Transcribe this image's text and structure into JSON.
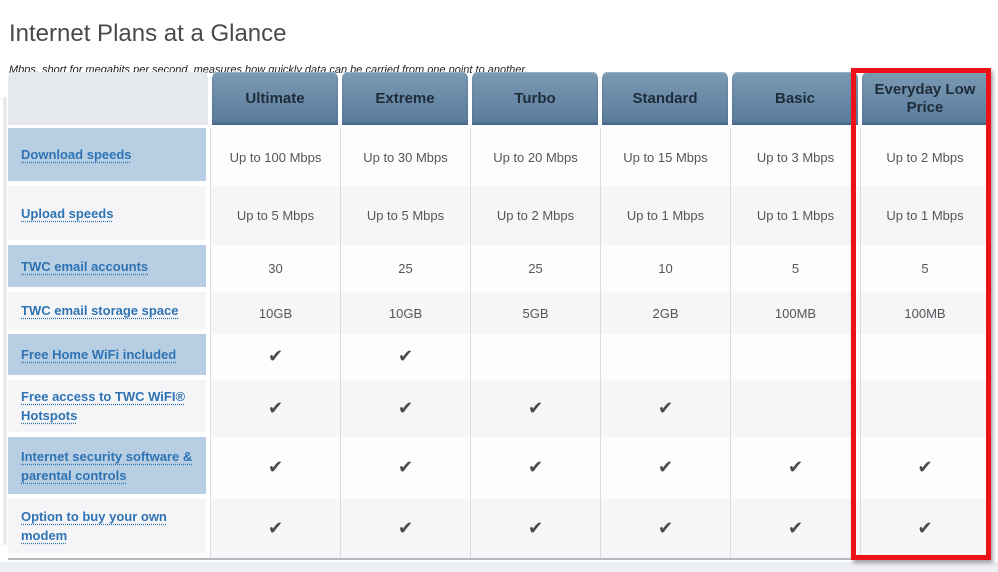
{
  "page": {
    "title": "Internet Plans at a Glance",
    "subtitle": "Mbps, short for megabits per second, measures how quickly data can be carried from one point to another."
  },
  "table": {
    "check_symbol": "✔",
    "columns": [
      {
        "label": "Ultimate",
        "highlighted": false
      },
      {
        "label": "Extreme",
        "highlighted": false
      },
      {
        "label": "Turbo",
        "highlighted": false
      },
      {
        "label": "Standard",
        "highlighted": false
      },
      {
        "label": "Basic",
        "highlighted": false
      },
      {
        "label": "Everyday Low Price",
        "highlighted": true
      }
    ],
    "rows": [
      {
        "label": "Download speeds",
        "values": [
          "Up to 100 Mbps",
          "Up to 30 Mbps",
          "Up to 20 Mbps",
          "Up to 15 Mbps",
          "Up to 3 Mbps",
          "Up to 2 Mbps"
        ]
      },
      {
        "label": "Upload speeds",
        "values": [
          "Up to 5 Mbps",
          "Up to 5 Mbps",
          "Up to 2 Mbps",
          "Up to 1 Mbps",
          "Up to 1 Mbps",
          "Up to 1 Mbps"
        ]
      },
      {
        "label": "TWC email accounts",
        "values": [
          "30",
          "25",
          "25",
          "10",
          "5",
          "5"
        ]
      },
      {
        "label": "TWC email storage space",
        "values": [
          "10GB",
          "10GB",
          "5GB",
          "2GB",
          "100MB",
          "100MB"
        ]
      },
      {
        "label": "Free Home WiFi included",
        "values": [
          "check",
          "check",
          "",
          "",
          "",
          ""
        ]
      },
      {
        "label": "Free access to TWC WiFI® Hotspots",
        "values": [
          "check",
          "check",
          "check",
          "check",
          "",
          ""
        ]
      },
      {
        "label": "Internet security software & parental controls",
        "values": [
          "check",
          "check",
          "check",
          "check",
          "check",
          "check"
        ]
      },
      {
        "label": "Option to buy your own modem",
        "values": [
          "check",
          "check",
          "check",
          "check",
          "check",
          "check"
        ]
      }
    ],
    "colors": {
      "header_top": "#7b9ab3",
      "header_bottom": "#587a9c",
      "label_blue": "#b7cee3",
      "label_gray": "#f5f5f7",
      "row_white": "#fdfdfe",
      "row_gray": "#f6f6f8",
      "link_blue": "#2e73b4",
      "highlight_red": "#ec1218",
      "check_gray": "#4a4a4a"
    }
  }
}
